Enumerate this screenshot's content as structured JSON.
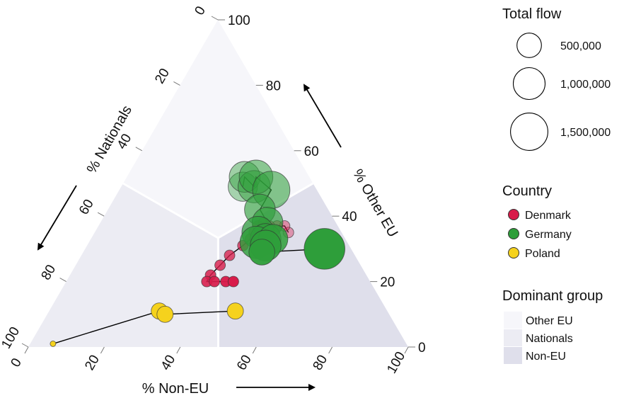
{
  "chart_data": {
    "type": "scatter",
    "subtype": "ternary",
    "axes": {
      "left": {
        "label": "% Nationals",
        "ticks": [
          "0",
          "20",
          "40",
          "60",
          "80",
          "100"
        ]
      },
      "right": {
        "label": "% Other EU",
        "ticks": [
          "0",
          "20",
          "40",
          "60",
          "80",
          "100"
        ]
      },
      "bottom": {
        "label": "% Non-EU",
        "ticks": [
          "0",
          "20",
          "40",
          "60",
          "80",
          "100"
        ]
      }
    },
    "regions": [
      {
        "name": "Other EU",
        "color": "#f6f6fa"
      },
      {
        "name": "Nationals",
        "color": "#ececf3"
      },
      {
        "name": "Non-EU",
        "color": "#dfdfeb"
      }
    ],
    "series": [
      {
        "name": "Denmark",
        "color": "#d81b4a",
        "marker_size": "small",
        "points": [
          {
            "other_eu": 35,
            "non_eu": 51,
            "nationals": 14
          },
          {
            "other_eu": 37,
            "non_eu": 49,
            "nationals": 14
          },
          {
            "other_eu": 37,
            "non_eu": 47,
            "nationals": 16
          },
          {
            "other_eu": 37,
            "non_eu": 45,
            "nationals": 18
          },
          {
            "other_eu": 38,
            "non_eu": 43,
            "nationals": 19
          },
          {
            "other_eu": 37,
            "non_eu": 42,
            "nationals": 21
          },
          {
            "other_eu": 35,
            "non_eu": 42,
            "nationals": 23
          },
          {
            "other_eu": 33,
            "non_eu": 42,
            "nationals": 25
          },
          {
            "other_eu": 31,
            "non_eu": 41,
            "nationals": 28
          },
          {
            "other_eu": 28,
            "non_eu": 39,
            "nationals": 33
          },
          {
            "other_eu": 25,
            "non_eu": 38,
            "nationals": 37
          },
          {
            "other_eu": 22,
            "non_eu": 37,
            "nationals": 41
          },
          {
            "other_eu": 20,
            "non_eu": 37,
            "nationals": 43
          },
          {
            "other_eu": 20,
            "non_eu": 39,
            "nationals": 41
          },
          {
            "other_eu": 20,
            "non_eu": 42,
            "nationals": 38
          },
          {
            "other_eu": 20,
            "non_eu": 44,
            "nationals": 36
          }
        ]
      },
      {
        "name": "Germany",
        "color": "#2e9e3a",
        "marker_size": "large",
        "points": [
          {
            "other_eu": 49,
            "non_eu": 32,
            "nationals": 19,
            "flow": 700000
          },
          {
            "other_eu": 52,
            "non_eu": 31,
            "nationals": 17,
            "flow": 800000
          },
          {
            "other_eu": 49,
            "non_eu": 35,
            "nationals": 16,
            "flow": 900000
          },
          {
            "other_eu": 52,
            "non_eu": 34,
            "nationals": 14,
            "flow": 1000000
          },
          {
            "other_eu": 48,
            "non_eu": 40,
            "nationals": 12,
            "flow": 1300000
          },
          {
            "other_eu": 42,
            "non_eu": 40,
            "nationals": 18,
            "flow": 800000
          },
          {
            "other_eu": 38,
            "non_eu": 44,
            "nationals": 18,
            "flow": 800000
          },
          {
            "other_eu": 35,
            "non_eu": 43,
            "nationals": 22,
            "flow": 900000
          },
          {
            "other_eu": 33,
            "non_eu": 46,
            "nationals": 21,
            "flow": 800000
          },
          {
            "other_eu": 32,
            "non_eu": 44,
            "nationals": 24,
            "flow": 900000
          },
          {
            "other_eu": 33,
            "non_eu": 48,
            "nationals": 19,
            "flow": 700000
          },
          {
            "other_eu": 31,
            "non_eu": 47,
            "nationals": 22,
            "flow": 800000
          },
          {
            "other_eu": 29,
            "non_eu": 47,
            "nationals": 24,
            "flow": 500000
          },
          {
            "other_eu": 30,
            "non_eu": 63,
            "nationals": 7,
            "flow": 1600000
          }
        ]
      },
      {
        "name": "Poland",
        "color": "#f5d21d",
        "marker_size": "medium",
        "points": [
          {
            "other_eu": 1,
            "non_eu": 6,
            "nationals": 93
          },
          {
            "other_eu": 11,
            "non_eu": 29,
            "nationals": 60
          },
          {
            "other_eu": 10,
            "non_eu": 31,
            "nationals": 59
          },
          {
            "other_eu": 11,
            "non_eu": 49,
            "nationals": 40
          }
        ]
      }
    ],
    "legend": {
      "size": {
        "title": "Total flow",
        "entries": [
          {
            "label": "500,000",
            "value": 500000
          },
          {
            "label": "1,000,000",
            "value": 1000000
          },
          {
            "label": "1,500,000",
            "value": 1500000
          }
        ]
      },
      "country": {
        "title": "Country",
        "entries": [
          {
            "label": "Denmark",
            "color": "#d81b4a"
          },
          {
            "label": "Germany",
            "color": "#2e9e3a"
          },
          {
            "label": "Poland",
            "color": "#f5d21d"
          }
        ]
      },
      "dominant": {
        "title": "Dominant group",
        "entries": [
          {
            "label": "Other EU",
            "color": "#f6f6fa"
          },
          {
            "label": "Nationals",
            "color": "#ececf3"
          },
          {
            "label": "Non-EU",
            "color": "#dfdfeb"
          }
        ]
      }
    }
  }
}
